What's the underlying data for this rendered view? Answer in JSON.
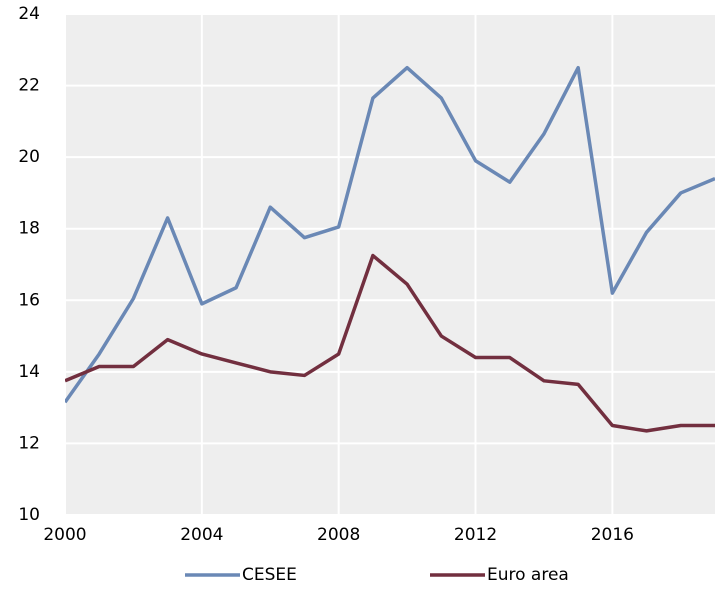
{
  "chart_data": {
    "type": "line",
    "x": [
      2000,
      2001,
      2002,
      2003,
      2004,
      2005,
      2006,
      2007,
      2008,
      2009,
      2010,
      2011,
      2012,
      2013,
      2014,
      2015,
      2016,
      2017,
      2018,
      2019
    ],
    "series": [
      {
        "name": "CESEE",
        "color": "#6a88b5",
        "values": [
          13.15,
          14.5,
          16.05,
          18.3,
          15.9,
          16.35,
          18.6,
          17.75,
          18.05,
          21.65,
          22.5,
          21.65,
          19.9,
          19.3,
          20.65,
          22.5,
          16.2,
          17.9,
          19.0,
          19.4
        ]
      },
      {
        "name": "Euro area",
        "color": "#722f3f",
        "values": [
          13.75,
          14.15,
          14.15,
          14.9,
          14.5,
          14.25,
          14.0,
          13.9,
          14.5,
          17.25,
          16.45,
          15.0,
          14.4,
          14.4,
          13.75,
          13.65,
          12.5,
          12.35,
          12.5,
          12.5
        ]
      }
    ],
    "xlim": [
      2000,
      2019
    ],
    "xticks": [
      2000,
      2004,
      2008,
      2012,
      2016
    ],
    "ylim": [
      10,
      24
    ],
    "yticks": [
      10,
      12,
      14,
      16,
      18,
      20,
      22,
      24
    ],
    "grid": true,
    "legend": "bottom"
  }
}
